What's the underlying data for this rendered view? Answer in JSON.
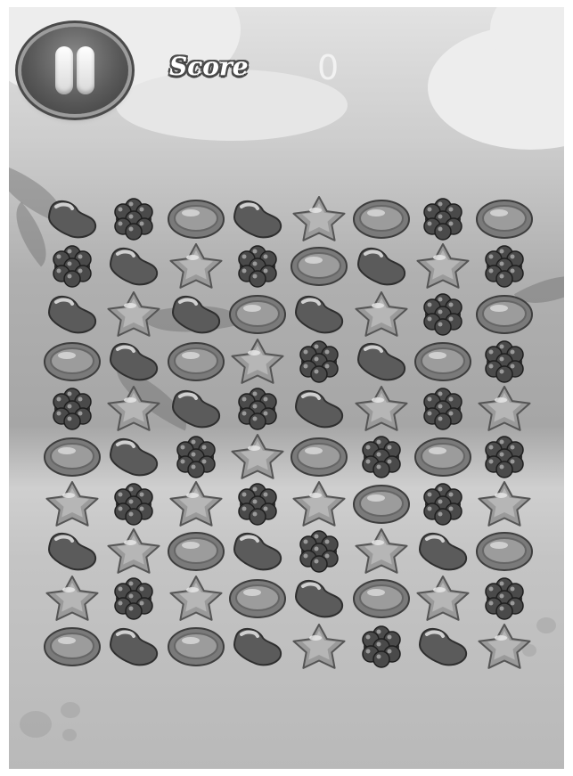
{
  "hud": {
    "pause_icon": "pause-icon",
    "score_label": "Score",
    "score_value": "0"
  },
  "board": {
    "rows": 10,
    "cols": 8,
    "candy_types": [
      "bean",
      "berry",
      "oval",
      "star"
    ],
    "grid": [
      [
        "bean",
        "berry",
        "oval",
        "bean",
        "star",
        "oval",
        "berry",
        "oval"
      ],
      [
        "berry",
        "bean",
        "star",
        "berry",
        "oval",
        "bean",
        "star",
        "berry"
      ],
      [
        "bean",
        "star",
        "bean",
        "oval",
        "bean",
        "star",
        "berry",
        "oval"
      ],
      [
        "oval",
        "bean",
        "oval",
        "star",
        "berry",
        "bean",
        "oval",
        "berry"
      ],
      [
        "berry",
        "star",
        "bean",
        "berry",
        "bean",
        "star",
        "berry",
        "star"
      ],
      [
        "oval",
        "bean",
        "berry",
        "star",
        "oval",
        "berry",
        "oval",
        "berry"
      ],
      [
        "star",
        "berry",
        "star",
        "berry",
        "star",
        "oval",
        "berry",
        "star"
      ],
      [
        "bean",
        "star",
        "oval",
        "bean",
        "berry",
        "star",
        "bean",
        "oval"
      ],
      [
        "star",
        "berry",
        "star",
        "oval",
        "bean",
        "oval",
        "star",
        "berry"
      ],
      [
        "oval",
        "bean",
        "oval",
        "bean",
        "star",
        "berry",
        "bean",
        "star"
      ]
    ]
  }
}
